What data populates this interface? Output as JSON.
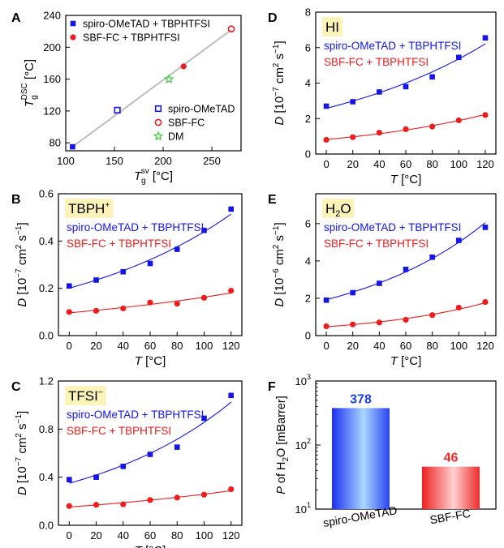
{
  "panel_labels": {
    "A": "A",
    "B": "B",
    "C": "C",
    "D": "D",
    "E": "E",
    "F": "F"
  },
  "chart_data": [
    {
      "id": "A",
      "type": "scatter",
      "xlabel": {
        "main": "T",
        "sub": "g",
        "sup": "sv",
        "unit": " [°C]"
      },
      "ylabel": {
        "main": "T",
        "sub": "g",
        "sup": "DSC",
        "unit": " [°C]"
      },
      "xlim": [
        100,
        280
      ],
      "ylim": [
        70,
        240
      ],
      "xticks": [
        100,
        150,
        200,
        250
      ],
      "yticks": [
        80,
        120,
        160,
        200,
        240
      ],
      "fit_line": {
        "x": [
          107,
          270
        ],
        "y": [
          75,
          222
        ],
        "color": "#bdbdbd"
      },
      "series": [
        {
          "name": "spiro-OMeTAD + TBPHTFSI",
          "marker": "square-filled",
          "color": "#1515e6",
          "x": [
            107
          ],
          "y": [
            75
          ]
        },
        {
          "name": "SBF-FC + TBPHTFSI",
          "marker": "circle-filled",
          "color": "#ee1c1c",
          "x": [
            221
          ],
          "y": [
            176
          ]
        },
        {
          "name": "spiro-OMeTAD",
          "marker": "square-open",
          "color": "#1515e6",
          "x": [
            153
          ],
          "y": [
            121
          ]
        },
        {
          "name": "SBF-FC",
          "marker": "circle-open",
          "color": "#ee1c1c",
          "x": [
            270
          ],
          "y": [
            223
          ]
        },
        {
          "name": "DM",
          "marker": "star-open",
          "color": "#38c838",
          "x": [
            206
          ],
          "y": [
            160
          ]
        }
      ]
    },
    {
      "id": "D",
      "type": "scatter",
      "annotation": "HI",
      "xlabel": {
        "main": "T",
        "unit": " [°C]"
      },
      "ylabel": {
        "main": "D",
        "unit": " [10",
        "exp": "−7",
        "unit2": " cm",
        "exp2": "2",
        "unit3": " s",
        "exp3": "−1",
        "unit4": "]"
      },
      "xlim": [
        -8,
        128
      ],
      "ylim": [
        0,
        8
      ],
      "xticks": [
        0,
        20,
        40,
        60,
        80,
        100,
        120
      ],
      "yticks": [
        0,
        2,
        4,
        6,
        8
      ],
      "series": [
        {
          "name": "spiro-OMeTAD + TBPHTFSI",
          "marker": "square-filled",
          "color": "#1515e6",
          "x": [
            0,
            20,
            40,
            60,
            80,
            100,
            120
          ],
          "y": [
            2.7,
            2.95,
            3.5,
            3.8,
            4.35,
            5.45,
            6.55
          ],
          "fit": "exp"
        },
        {
          "name": "SBF-FC + TBPHTFSI",
          "marker": "circle-filled",
          "color": "#ee1c1c",
          "x": [
            0,
            20,
            40,
            60,
            80,
            100,
            120
          ],
          "y": [
            0.8,
            0.95,
            1.2,
            1.4,
            1.55,
            1.9,
            2.2
          ],
          "fit": "exp"
        }
      ]
    },
    {
      "id": "B",
      "type": "scatter",
      "annotation": "TBPH",
      "annotation_sup": "+",
      "xlabel": {
        "main": "T",
        "unit": " [°C]"
      },
      "ylabel": {
        "main": "D",
        "unit": " [10",
        "exp": "−7",
        "unit2": " cm",
        "exp2": "2",
        "unit3": " s",
        "exp3": "−1",
        "unit4": "]"
      },
      "xlim": [
        -8,
        128
      ],
      "ylim": [
        0,
        0.6
      ],
      "xticks": [
        0,
        20,
        40,
        60,
        80,
        100,
        120
      ],
      "yticks": [
        0.0,
        0.2,
        0.4,
        0.6
      ],
      "ytick_labels": [
        "0.0",
        "0.2",
        "0.4",
        "0.6"
      ],
      "series": [
        {
          "name": "spiro-OMeTAD + TBPHTFSI",
          "marker": "square-filled",
          "color": "#1515e6",
          "x": [
            0,
            20,
            40,
            60,
            80,
            100,
            120
          ],
          "y": [
            0.21,
            0.235,
            0.27,
            0.305,
            0.365,
            0.445,
            0.535
          ],
          "fit": "exp"
        },
        {
          "name": "SBF-FC + TBPHTFSI",
          "marker": "circle-filled",
          "color": "#ee1c1c",
          "x": [
            0,
            20,
            40,
            60,
            80,
            100,
            120
          ],
          "y": [
            0.1,
            0.105,
            0.115,
            0.14,
            0.135,
            0.16,
            0.19
          ],
          "fit": "exp"
        }
      ]
    },
    {
      "id": "E",
      "type": "scatter",
      "annotation": "H",
      "annotation_sub": "2",
      "annotation_tail": "O",
      "xlabel": {
        "main": "T",
        "unit": " [°C]"
      },
      "ylabel": {
        "main": "D",
        "unit": " [10",
        "exp": "−6",
        "unit2": " cm",
        "exp2": "2",
        "unit3": " s",
        "exp3": "−1",
        "unit4": "]"
      },
      "xlim": [
        -8,
        128
      ],
      "ylim": [
        0,
        7.6
      ],
      "xticks": [
        0,
        20,
        40,
        60,
        80,
        100,
        120
      ],
      "yticks": [
        0,
        2,
        4,
        6
      ],
      "series": [
        {
          "name": "spiro-OMeTAD + TBPHTFSI",
          "marker": "square-filled",
          "color": "#1515e6",
          "x": [
            0,
            20,
            40,
            60,
            80,
            100,
            120
          ],
          "y": [
            1.9,
            2.3,
            2.8,
            3.55,
            4.2,
            5.1,
            5.8
          ],
          "fit": "exp"
        },
        {
          "name": "SBF-FC + TBPHTFSI",
          "marker": "circle-filled",
          "color": "#ee1c1c",
          "x": [
            0,
            20,
            40,
            60,
            80,
            100,
            120
          ],
          "y": [
            0.5,
            0.6,
            0.7,
            0.85,
            1.1,
            1.5,
            1.8
          ],
          "fit": "exp"
        }
      ]
    },
    {
      "id": "C",
      "type": "scatter",
      "annotation": "TFSI",
      "annotation_sup": "−",
      "xlabel": {
        "main": "T",
        "unit": " [°C]"
      },
      "ylabel": {
        "main": "D",
        "unit": " [10",
        "exp": "−7",
        "unit2": " cm",
        "exp2": "2",
        "unit3": " s",
        "exp3": "−1",
        "unit4": "]"
      },
      "xlim": [
        -8,
        128
      ],
      "ylim": [
        0,
        1.2
      ],
      "xticks": [
        0,
        20,
        40,
        60,
        80,
        100,
        120
      ],
      "yticks": [
        0.0,
        0.4,
        0.8,
        1.2
      ],
      "ytick_labels": [
        "0.0",
        "0.4",
        "0.8",
        "1.2"
      ],
      "series": [
        {
          "name": "spiro-OMeTAD + TBPHTFSI",
          "marker": "square-filled",
          "color": "#1515e6",
          "x": [
            0,
            20,
            40,
            60,
            80,
            100,
            120
          ],
          "y": [
            0.38,
            0.4,
            0.49,
            0.59,
            0.65,
            0.89,
            1.08
          ],
          "fit": "exp"
        },
        {
          "name": "SBF-FC + TBPHTFSI",
          "marker": "circle-filled",
          "color": "#ee1c1c",
          "x": [
            0,
            20,
            40,
            60,
            80,
            100,
            120
          ],
          "y": [
            0.16,
            0.17,
            0.175,
            0.21,
            0.23,
            0.255,
            0.3
          ],
          "fit": "exp"
        }
      ]
    },
    {
      "id": "F",
      "type": "bar",
      "ylabel": {
        "main": "P",
        "unit": " of H",
        "sub": "2",
        "unit2": "O [mBarrer]"
      },
      "yscale": "log",
      "ylim": [
        10,
        1000
      ],
      "yticks": [
        10,
        100,
        1000
      ],
      "ytick_labels": [
        {
          "base": "10",
          "exp": "1"
        },
        {
          "base": "10",
          "exp": "2"
        },
        {
          "base": "10",
          "exp": "3"
        }
      ],
      "categories": [
        "spiro-OMeTAD",
        "SBF-FC"
      ],
      "values": [
        378,
        46
      ],
      "data_labels": [
        "378",
        "46"
      ],
      "bar_colors": [
        "#1f3cf0",
        "#ef2a2a"
      ]
    }
  ]
}
